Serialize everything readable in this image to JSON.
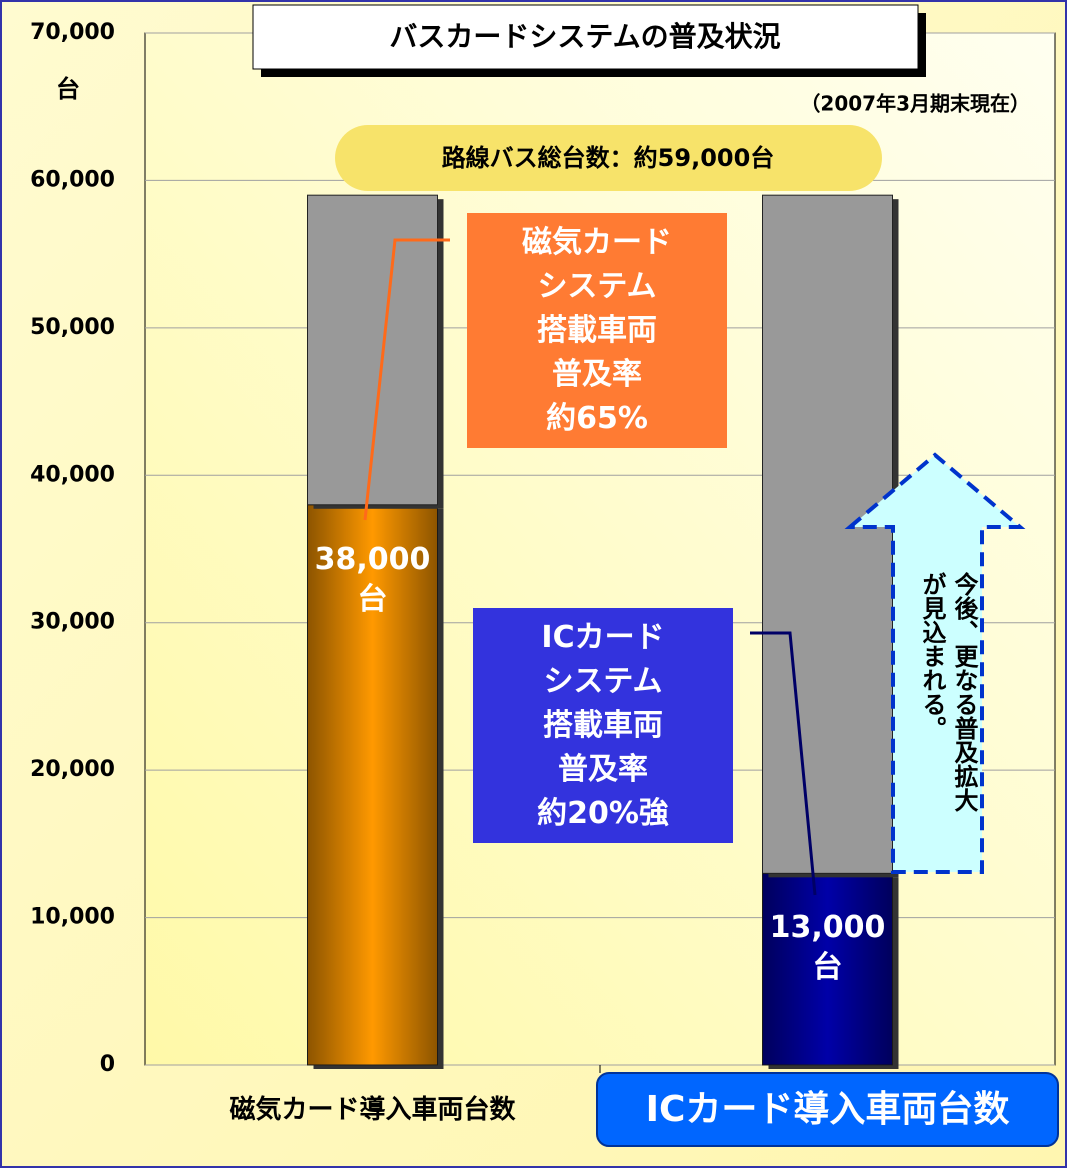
{
  "chart_data": {
    "type": "stacked_bar",
    "title": "バスカードシステムの普及状況",
    "subtitle": "（2007年3月期末現在）",
    "y_label": "台",
    "banner": "路線バス総台数：約59,000台",
    "categories": [
      "磁気カード導入車両台数",
      "ICカード導入車両台数"
    ],
    "series": [
      {
        "colors": [
          "#ff9900",
          "#0000a8"
        ],
        "values": [
          38000,
          13000
        ],
        "value_labels": [
          "38,000\n台",
          "13,000\n台"
        ]
      },
      {
        "color": "#999999",
        "values": [
          21000,
          46000
        ]
      }
    ],
    "ylim": [
      0,
      70000
    ],
    "yticks": [
      0,
      {
        "value": 10000,
        "label": "10,000"
      },
      {
        "value": 20000,
        "label": "20,000"
      },
      {
        "value": 30000,
        "label": "30,000"
      },
      {
        "value": 40000,
        "label": "40,000"
      },
      {
        "value": 50000,
        "label": "50,000"
      },
      {
        "value": 60000,
        "label": "60,000"
      },
      {
        "value": 70000,
        "label": "70,000"
      }
    ],
    "grid": true,
    "annotations": [
      "磁気カード\nシステム\n搭載車両\n普及率\n約65%",
      "ICカード\nシステム\n搭載車両\n普及率\n約20%強",
      "今後、更なる普及拡大\nが見込まれる。"
    ]
  }
}
